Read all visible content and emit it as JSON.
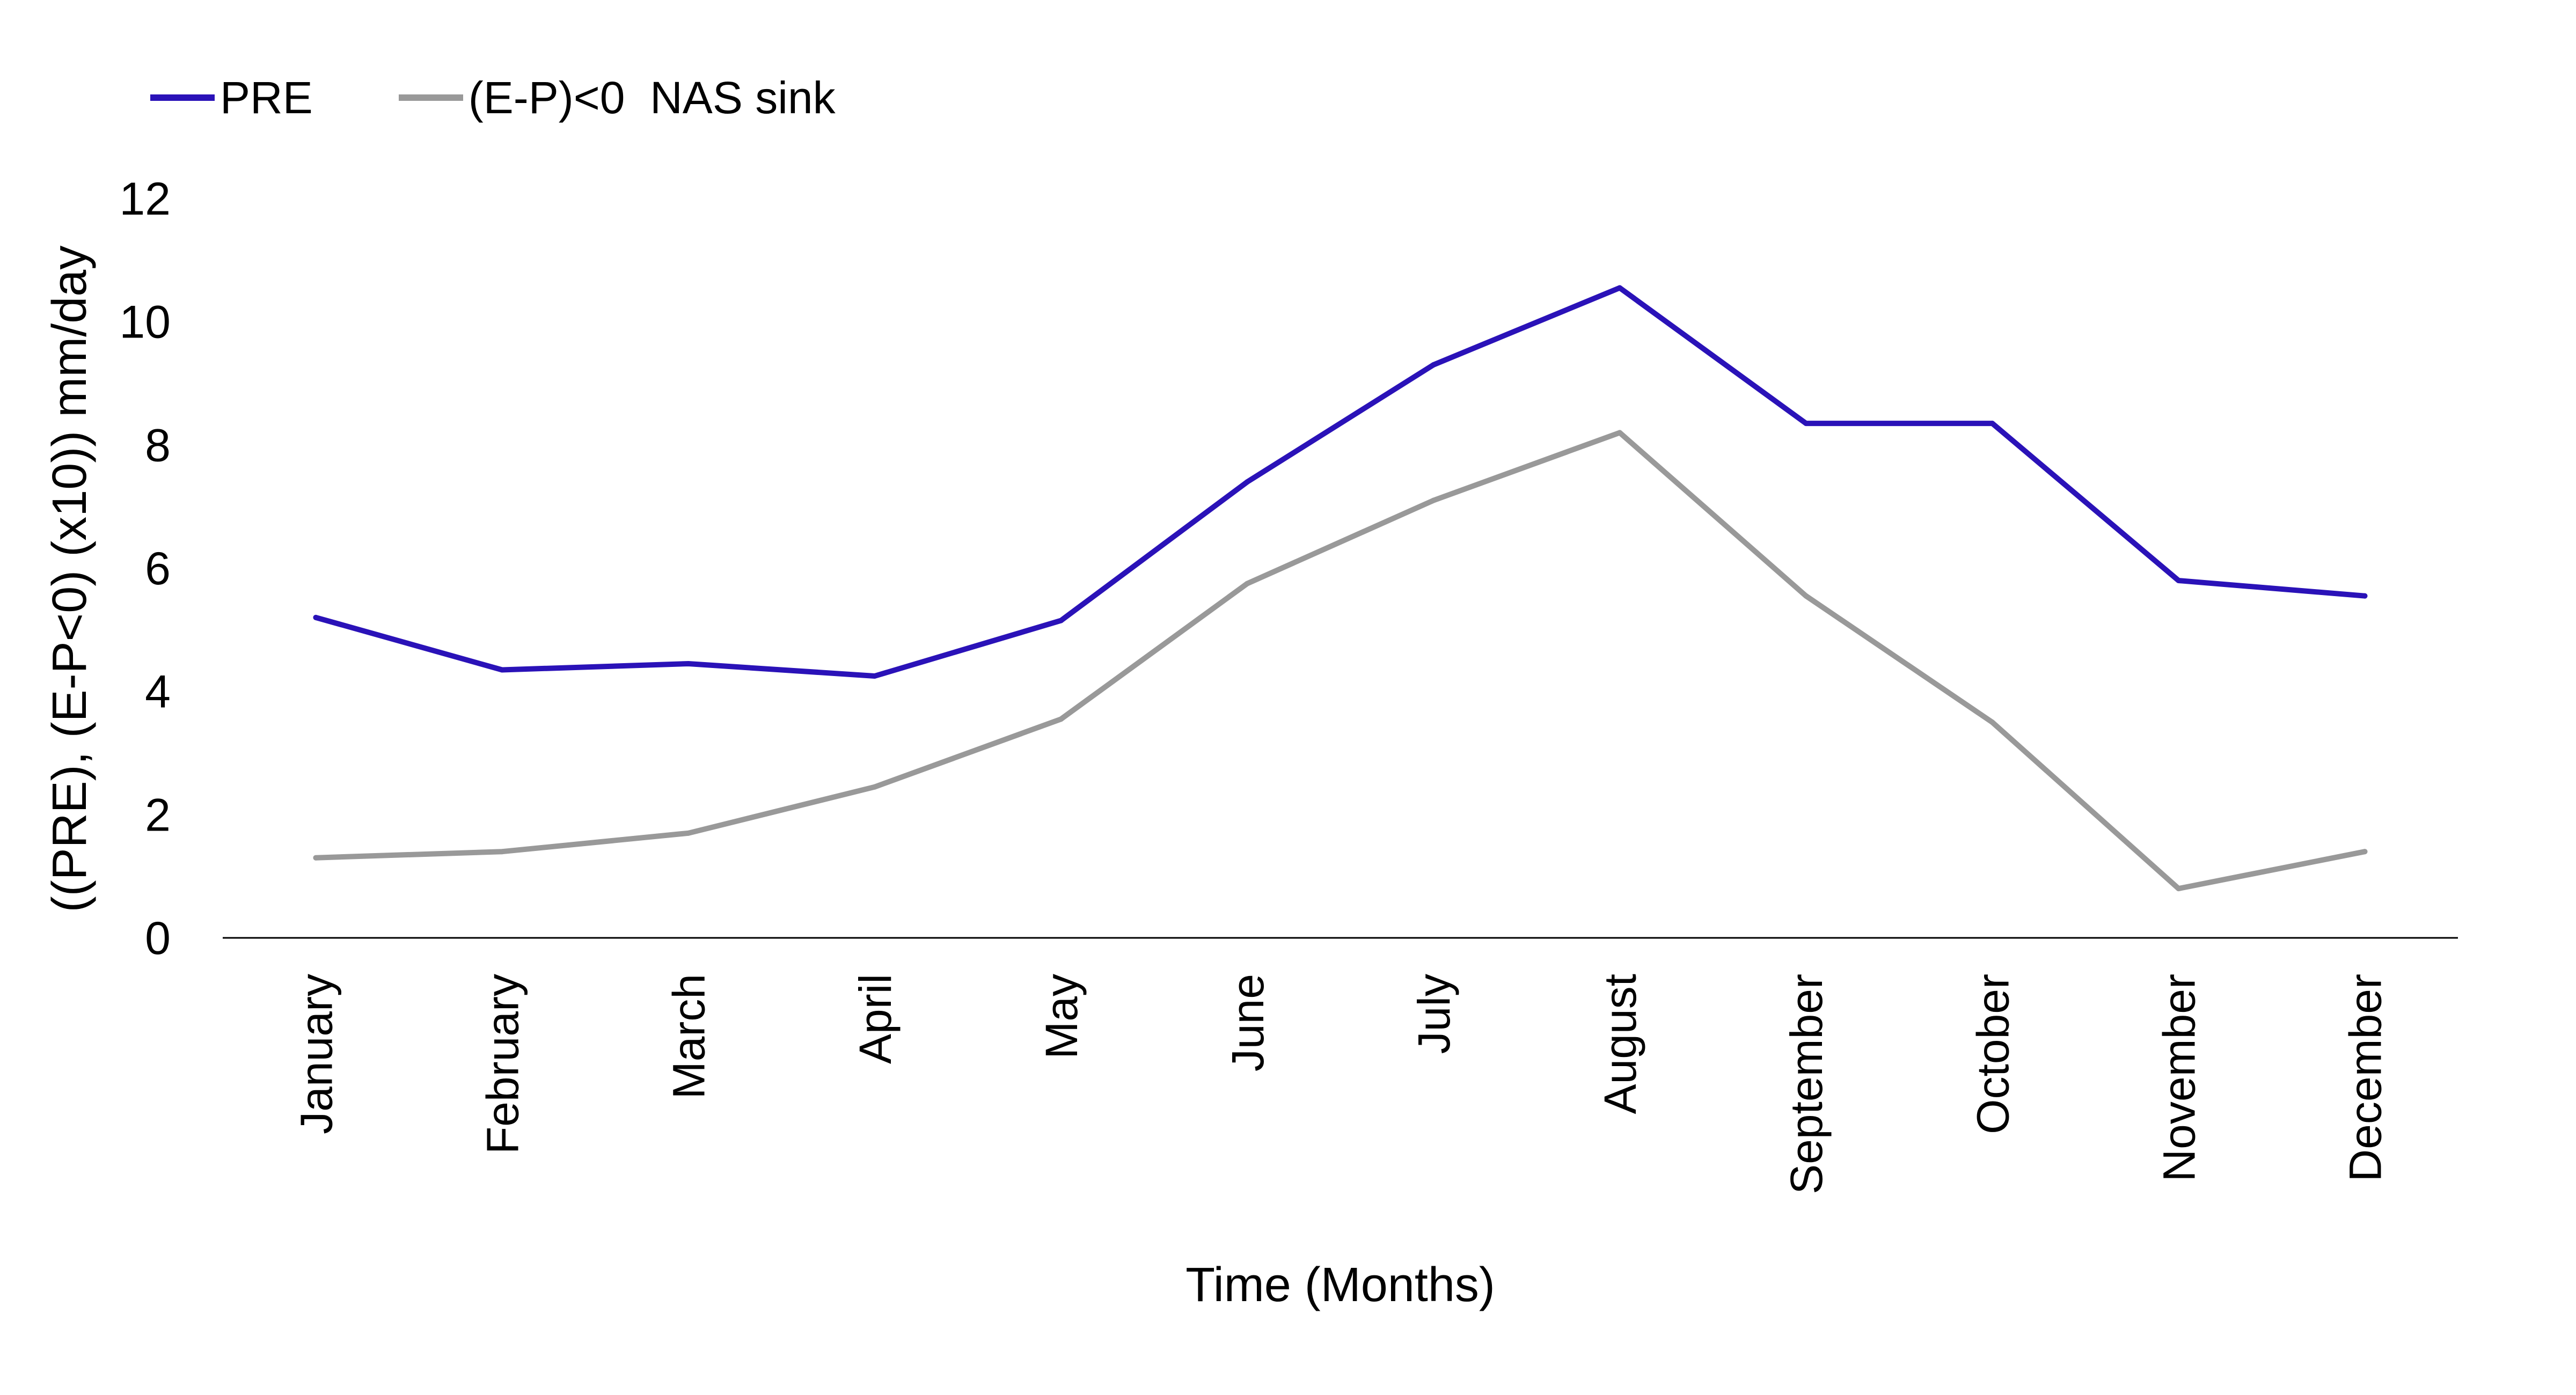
{
  "chart_data": {
    "type": "line",
    "categories": [
      "January",
      "February",
      "March",
      "April",
      "May",
      "June",
      "July",
      "August",
      "September",
      "October",
      "November",
      "December"
    ],
    "series": [
      {
        "name": "PRE",
        "color": "#2A12B8",
        "values": [
          5.2,
          4.35,
          4.45,
          4.25,
          5.15,
          7.4,
          9.3,
          10.55,
          8.35,
          8.35,
          5.8,
          5.55
        ]
      },
      {
        "name": "(E-P)<0  NAS sink",
        "color": "#999999",
        "values": [
          1.3,
          1.4,
          1.7,
          2.45,
          3.55,
          5.75,
          7.1,
          8.2,
          5.55,
          3.5,
          0.8,
          1.4
        ]
      }
    ],
    "xlabel": "Time (Months)",
    "ylabel": "((PRE), (E-P<0) (x10)) mm/day",
    "ylim": [
      0,
      12
    ],
    "yticks": [
      0,
      2,
      4,
      6,
      8,
      10,
      12
    ],
    "grid": false,
    "legend_position": "top-left"
  }
}
